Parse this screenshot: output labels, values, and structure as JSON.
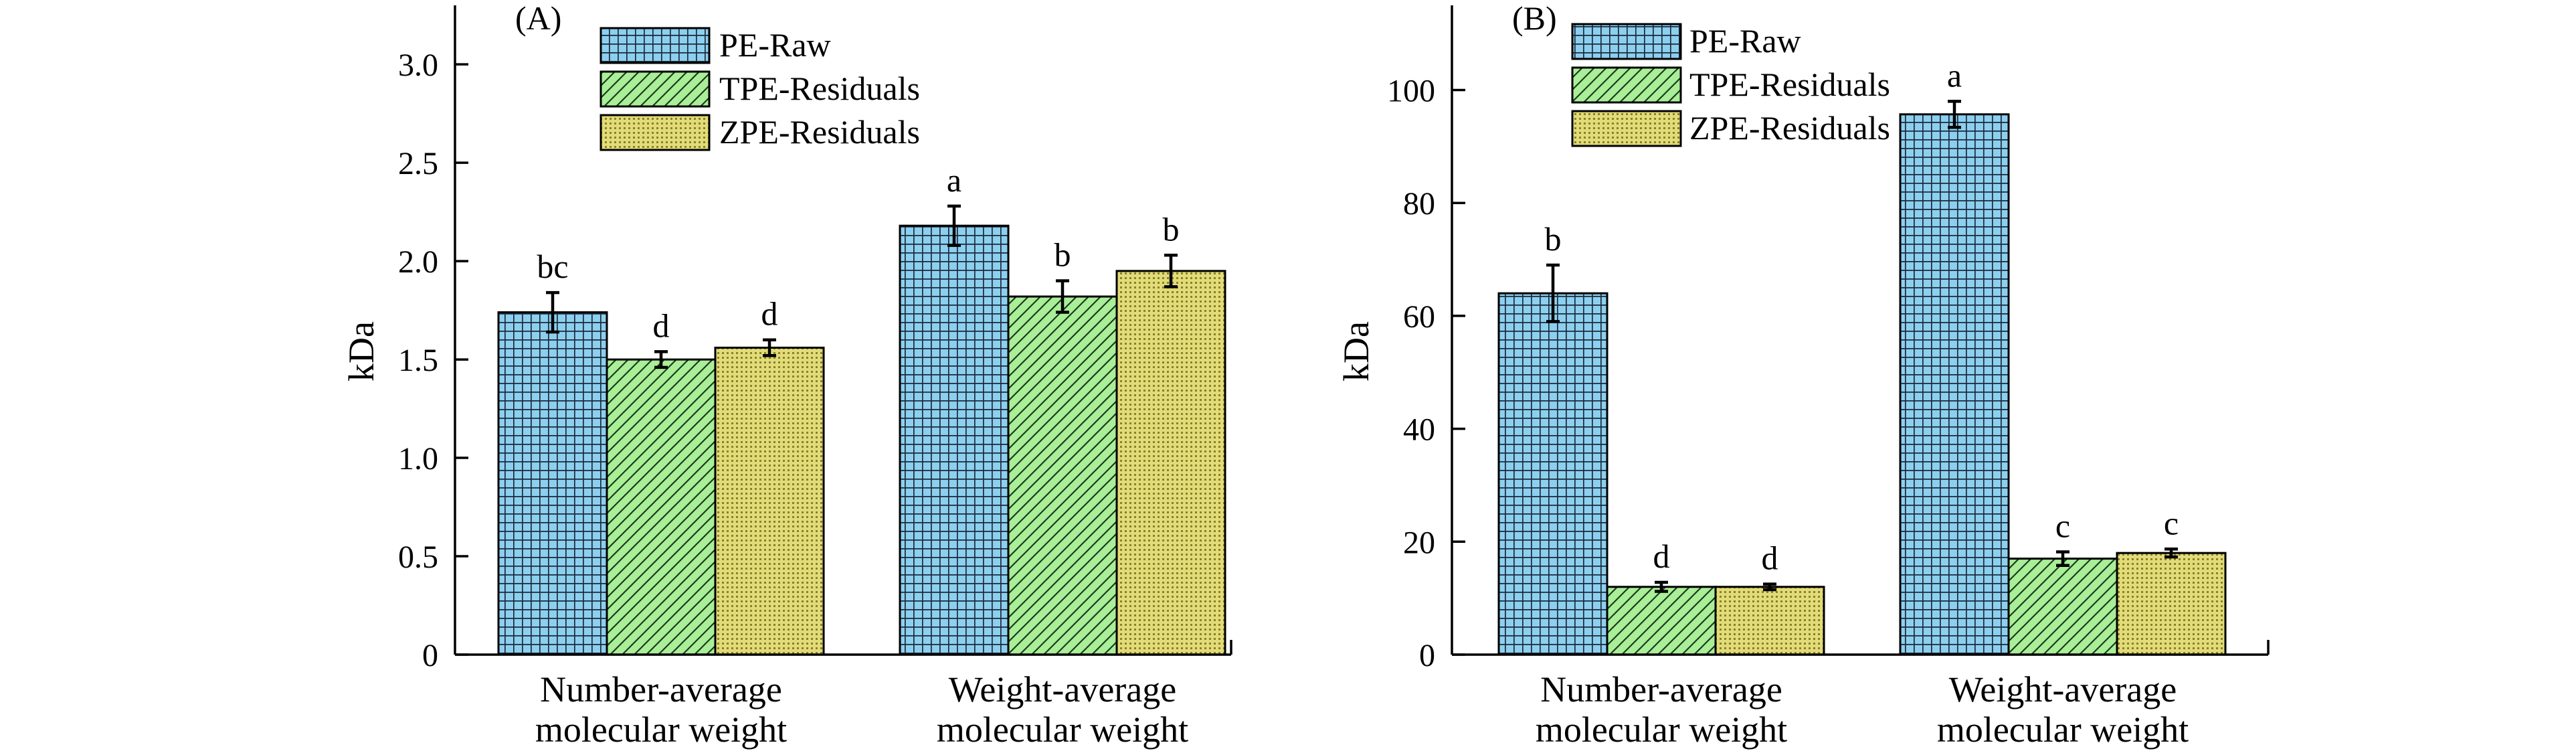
{
  "chart_data": [
    {
      "type": "bar",
      "panel_label": "(A)",
      "ylabel": "kDa",
      "ylim": [
        0,
        3.3
      ],
      "yticks": [
        0,
        0.5,
        1.0,
        1.5,
        2.0,
        2.5,
        3.0
      ],
      "ytick_labels": [
        "0",
        "0.5",
        "1.0",
        "1.5",
        "2.0",
        "2.5",
        "3.0"
      ],
      "categories": [
        [
          "Number-average",
          "molecular weight"
        ],
        [
          "Weight-average",
          "molecular weight"
        ]
      ],
      "series": [
        {
          "name": "PE-Raw",
          "values": [
            1.74,
            2.18
          ],
          "errors": [
            0.1,
            0.1
          ],
          "letters": [
            "bc",
            "a"
          ]
        },
        {
          "name": "TPE-Residuals",
          "values": [
            1.5,
            1.82
          ],
          "errors": [
            0.04,
            0.08
          ],
          "letters": [
            "d",
            "b"
          ]
        },
        {
          "name": "ZPE-Residuals",
          "values": [
            1.56,
            1.95
          ],
          "errors": [
            0.04,
            0.08
          ],
          "letters": [
            "d",
            "b"
          ]
        }
      ],
      "legend": "top-left",
      "grid": false
    },
    {
      "type": "bar",
      "panel_label": "(B)",
      "ylabel": "kDa",
      "ylim": [
        0,
        115
      ],
      "yticks": [
        0,
        20,
        40,
        60,
        80,
        100
      ],
      "ytick_labels": [
        "0",
        "20",
        "40",
        "60",
        "80",
        "100"
      ],
      "categories": [
        [
          "Number-average",
          "molecular weight"
        ],
        [
          "Weight-average",
          "molecular weight"
        ]
      ],
      "series": [
        {
          "name": "PE-Raw",
          "values": [
            64,
            95.7
          ],
          "errors": [
            5.0,
            2.3
          ],
          "letters": [
            "b",
            "a"
          ]
        },
        {
          "name": "TPE-Residuals",
          "values": [
            12,
            17
          ],
          "errors": [
            0.8,
            1.2
          ],
          "letters": [
            "d",
            "c"
          ]
        },
        {
          "name": "ZPE-Residuals",
          "values": [
            12,
            18
          ],
          "errors": [
            0.5,
            0.7
          ],
          "letters": [
            "d",
            "c"
          ]
        }
      ],
      "legend": "top-left",
      "grid": false
    }
  ],
  "series_styles": [
    {
      "fill": "#8dcfef",
      "pattern": "grid-pattern-icon"
    },
    {
      "fill": "#a9ef98",
      "pattern": "hatch-pattern-icon"
    },
    {
      "fill": "#e2dc78",
      "pattern": "dot-pattern-icon"
    }
  ]
}
